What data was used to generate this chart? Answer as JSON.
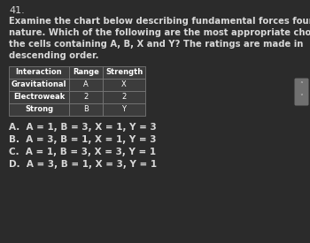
{
  "question_number": "41.",
  "question_lines": [
    "Examine the chart below describing fundamental forces found in",
    "nature. Which of the following are the most appropriate choices for",
    "the cells containing A, B, X and Y? The ratings are made in",
    "descending order."
  ],
  "table_headers": [
    "Interaction",
    "Range",
    "Strength"
  ],
  "table_rows": [
    [
      "Gravitational",
      "A",
      "X"
    ],
    [
      "Electroweak",
      "2",
      "2"
    ],
    [
      "Strong",
      "B",
      "Y"
    ]
  ],
  "choices": [
    "A.  A = 1, B = 3, X = 1, Y = 3",
    "B.  A = 3, B = 1, X = 1, Y = 3",
    "C.  A = 1, B = 3, X = 3, Y = 1",
    "D.  A = 3, B = 1, X = 3, Y = 1"
  ],
  "bg_color": "#2b2b2b",
  "text_color": "#d8d8d8",
  "table_bg": "#3c3c3c",
  "table_border_color": "#777777",
  "table_text_color": "#ffffff",
  "question_fontsize": 7.2,
  "choice_fontsize": 7.5,
  "number_fontsize": 8.0,
  "table_fontsize": 6.0
}
